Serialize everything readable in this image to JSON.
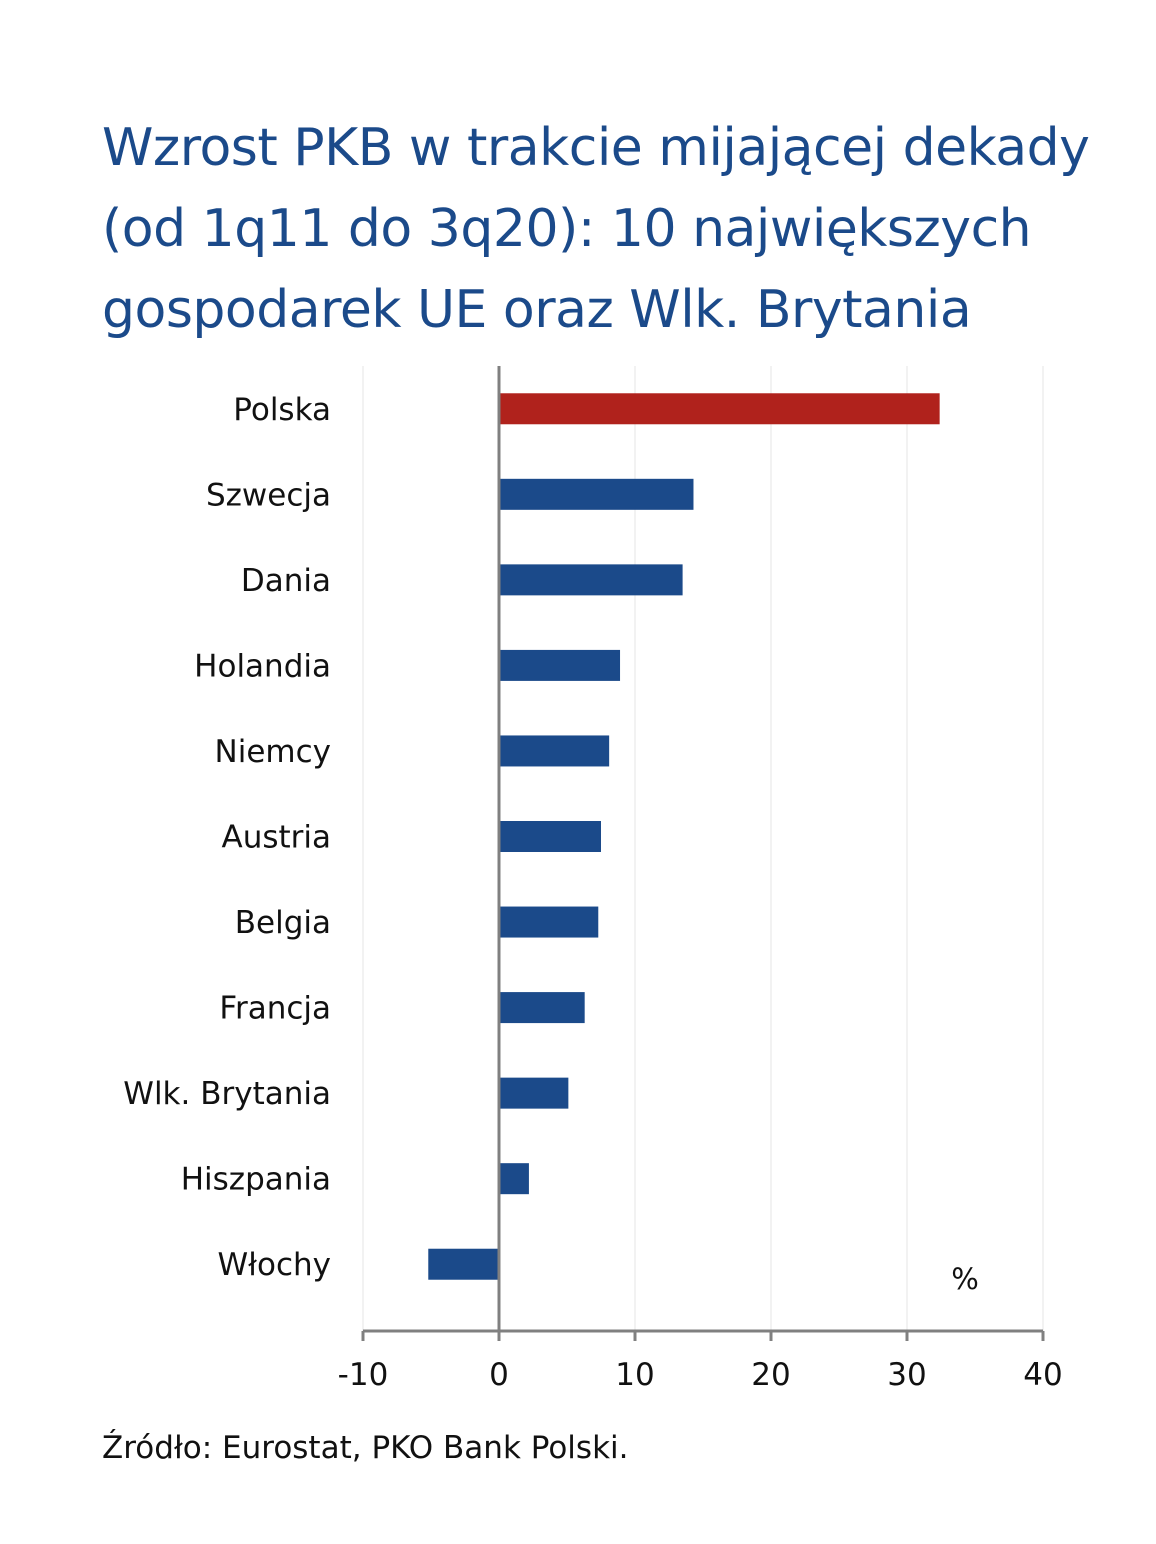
{
  "chart_data": {
    "type": "bar",
    "orientation": "horizontal",
    "title": "Wzrost PKB w trakcie mijającej dekady (od 1q11 do 3q20): 10 największych gospodarek UE oraz Wlk. Brytania",
    "categories": [
      "Polska",
      "Szwecja",
      "Dania",
      "Holandia",
      "Niemcy",
      "Austria",
      "Belgia",
      "Francja",
      "Wlk. Brytania",
      "Hiszpania",
      "Włochy"
    ],
    "values": [
      32.4,
      14.3,
      13.5,
      8.9,
      8.1,
      7.5,
      7.3,
      6.3,
      5.1,
      2.2,
      -5.2
    ],
    "xlim": [
      -10,
      40
    ],
    "xticks": [
      "-10",
      "0",
      "10",
      "20",
      "30",
      "40"
    ],
    "unit_label": "%",
    "grid": true,
    "colors": {
      "highlight": "#b0221c",
      "bars": "#1b4a8a",
      "title": "#1b4a8a",
      "axis": "#808080",
      "grid": "#eeeeee"
    }
  },
  "source": "Źródło: Eurostat, PKO Bank Polski."
}
